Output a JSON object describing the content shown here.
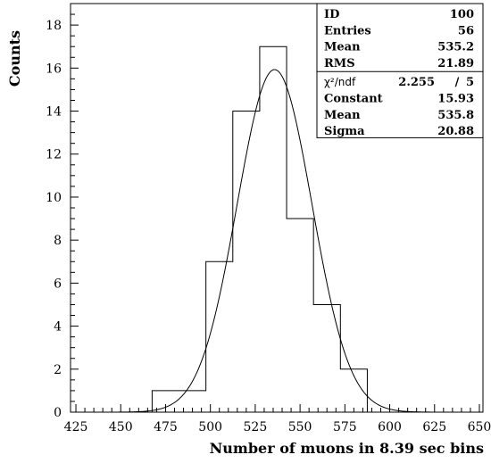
{
  "chart_data": {
    "type": "histogram",
    "xlabel": "Number of muons in 8.39 sec bins",
    "ylabel": "Counts",
    "xlim": [
      422,
      652
    ],
    "ylim": [
      0,
      19
    ],
    "x_ticks": [
      425,
      450,
      475,
      500,
      525,
      550,
      575,
      600,
      625,
      650
    ],
    "y_ticks": [
      0,
      2,
      4,
      6,
      8,
      10,
      12,
      14,
      16,
      18
    ],
    "bin_edges": [
      467.5,
      482.5,
      497.5,
      512.5,
      527.5,
      542.5,
      557.5,
      572.5,
      587.5
    ],
    "counts": [
      1,
      1,
      7,
      14,
      17,
      9,
      5,
      2
    ],
    "fit": {
      "type": "gaussian",
      "constant": 15.93,
      "mean": 535.8,
      "sigma": 20.88
    },
    "stats_box": {
      "rows": [
        {
          "label": "ID",
          "value": "100"
        },
        {
          "label": "Entries",
          "value": "56"
        },
        {
          "label": "Mean",
          "value": "535.2"
        },
        {
          "label": "RMS",
          "value": "21.89"
        }
      ],
      "fit_rows_header": {
        "label": "χ²/ndf",
        "value1": "2.255",
        "sep": "/",
        "value2": "5"
      },
      "fit_rows": [
        {
          "label": "Constant",
          "value": "15.93"
        },
        {
          "label": "Mean",
          "value": "535.8"
        },
        {
          "label": "Sigma",
          "value": "20.88"
        }
      ]
    },
    "legend_position": "top-right",
    "grid": false
  }
}
